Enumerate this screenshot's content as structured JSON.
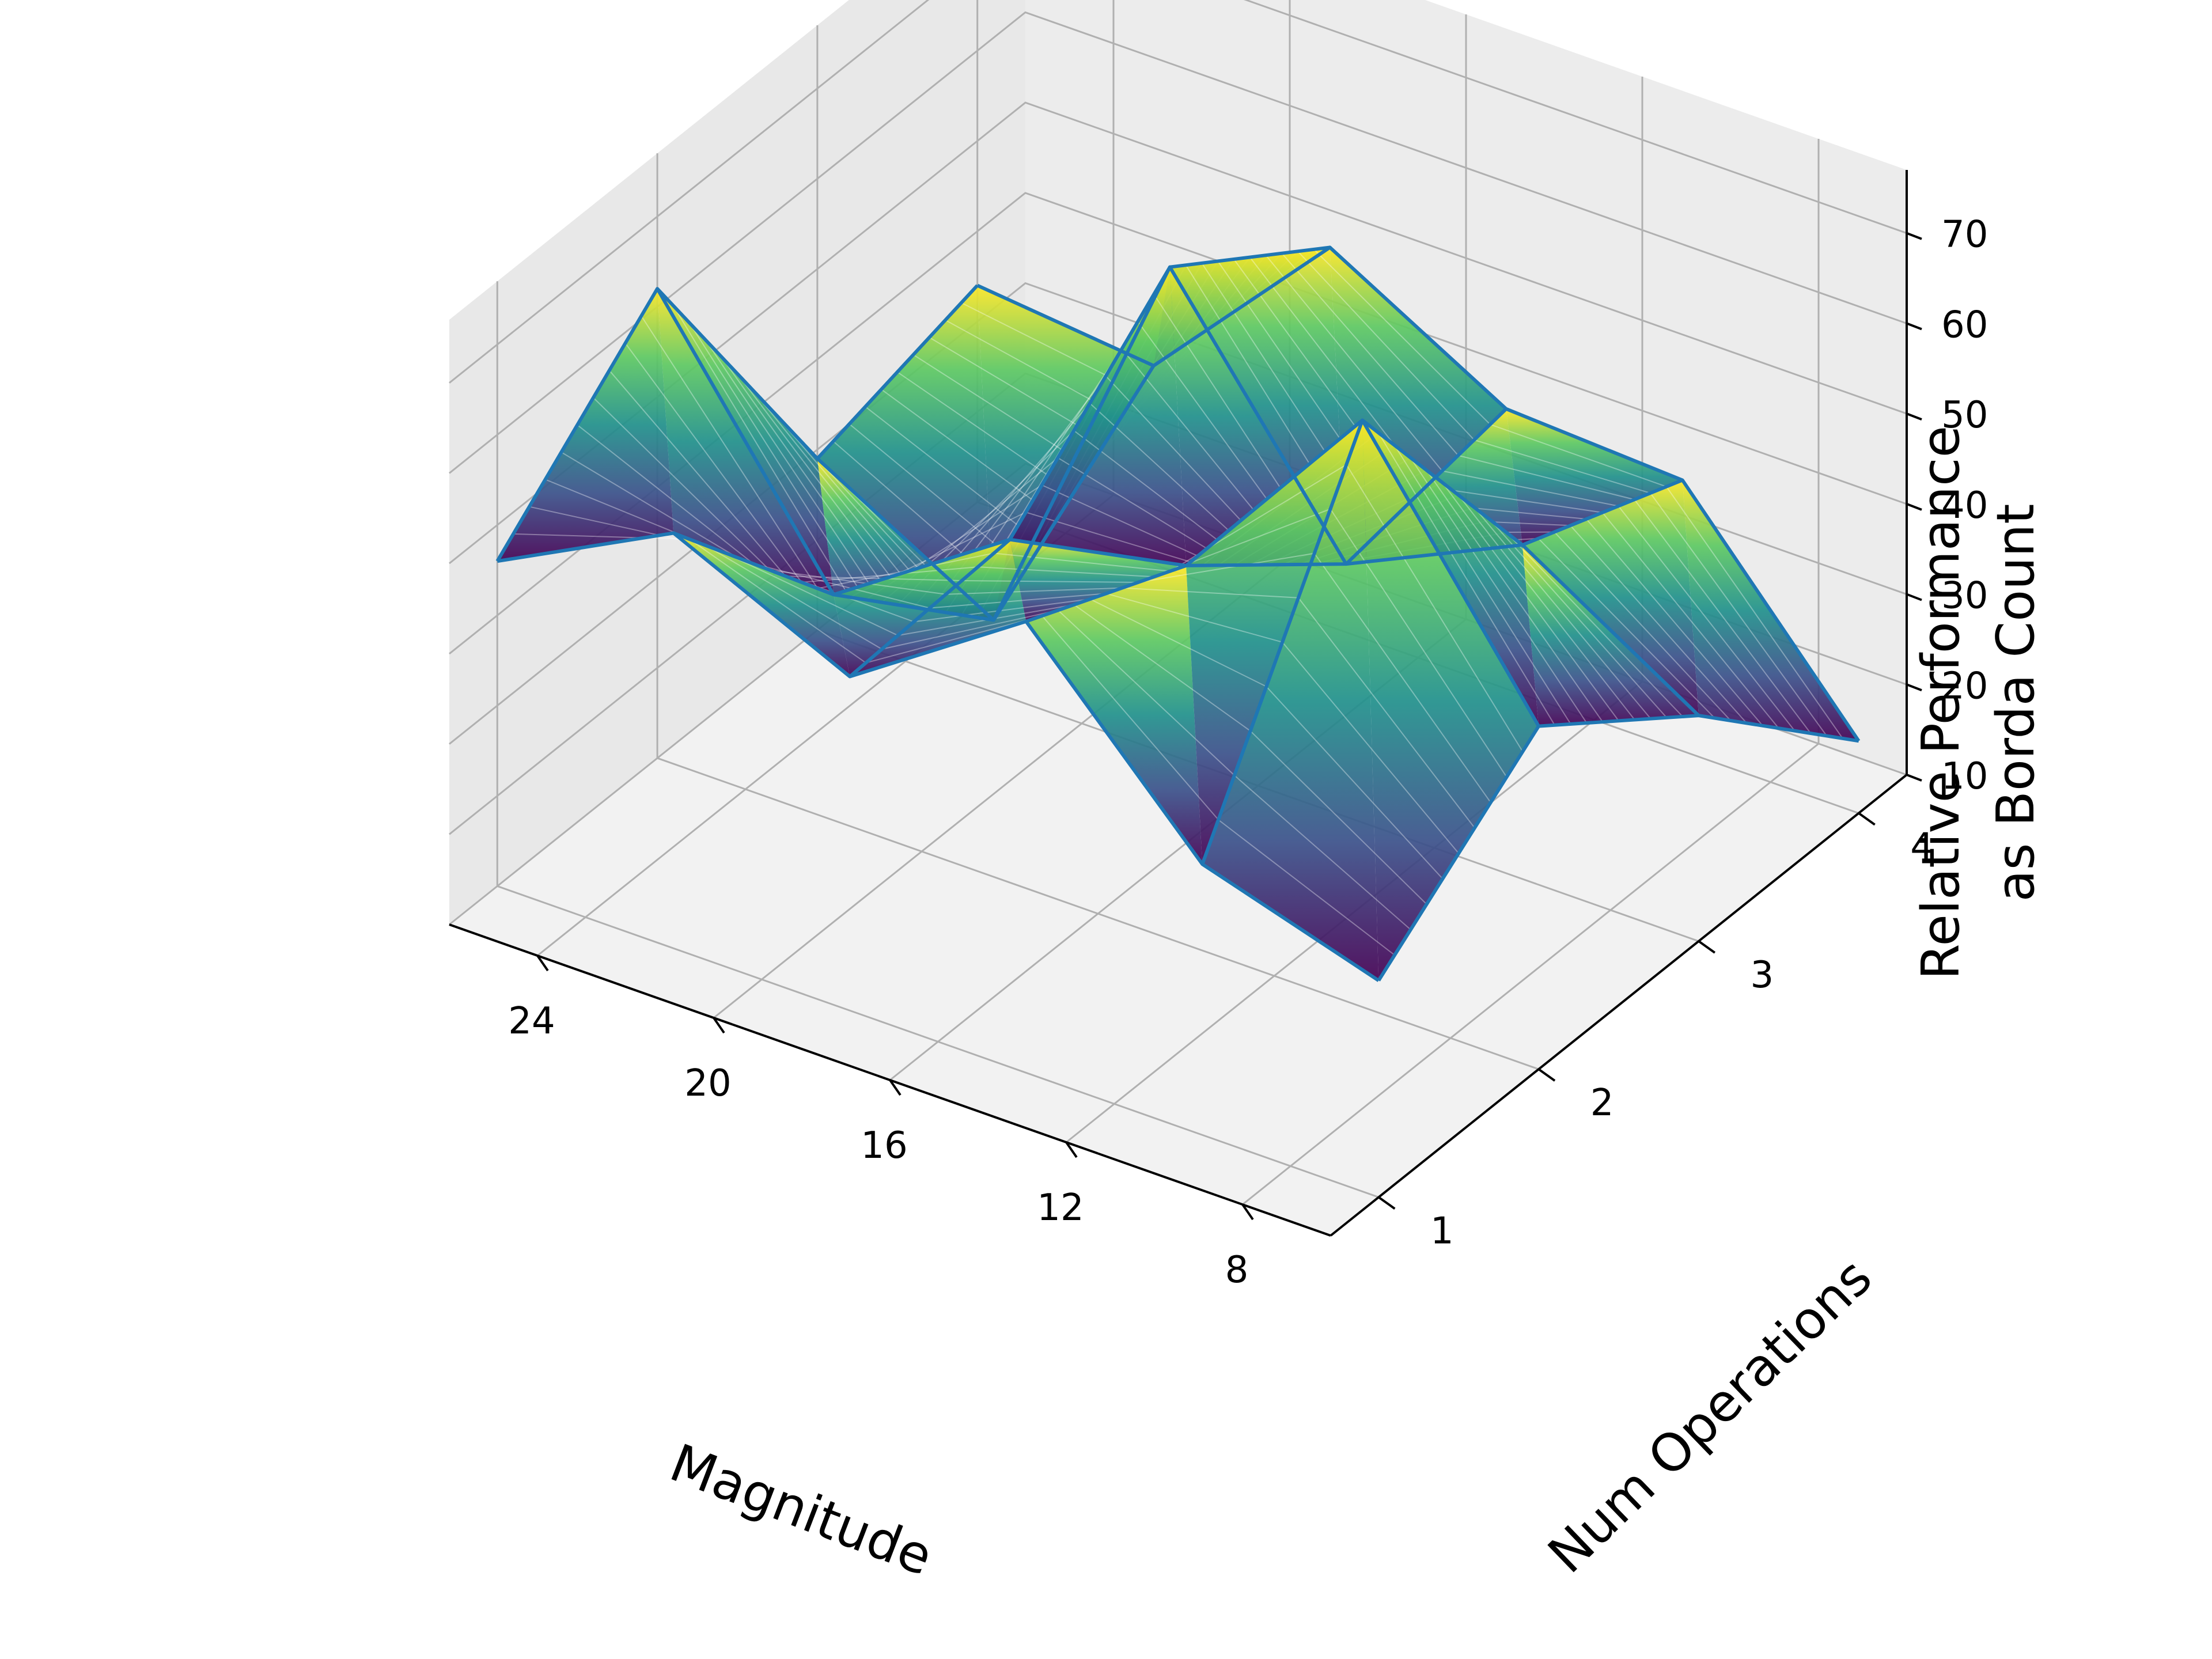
{
  "chart_data": {
    "type": "surface3d",
    "title": "",
    "xlabel": "Magnitude",
    "ylabel": "Num Operations",
    "zlabel_lines": [
      "Relative Performance",
      "as Borda Count"
    ],
    "x_ticks": [
      "24",
      "20",
      "16",
      "12",
      "8"
    ],
    "y_ticks": [
      "1",
      "2",
      "3",
      "4"
    ],
    "z_ticks": [
      "10",
      "20",
      "30",
      "40",
      "50",
      "60",
      "70"
    ],
    "xlim": [
      6,
      26
    ],
    "ylim": [
      0.7,
      4.3
    ],
    "zlim": [
      10,
      77
    ],
    "grid": true,
    "pane_color": "#f2f2f2",
    "grid_color": "#b0b0b0",
    "edge_color": "#1f77b4",
    "colormap": "viridis",
    "magnitude_values": [
      6,
      10,
      14,
      18,
      22,
      26
    ],
    "num_operations_values": [
      1,
      2,
      3,
      4
    ],
    "surface_z": [
      [
        34,
        48,
        35,
        18
      ],
      [
        40,
        75,
        47,
        40
      ],
      [
        60,
        52,
        38,
        41
      ],
      [
        47,
        48,
        64,
        52
      ],
      [
        56,
        35,
        18,
        32
      ],
      [
        46,
        62,
        29,
        34
      ]
    ]
  }
}
